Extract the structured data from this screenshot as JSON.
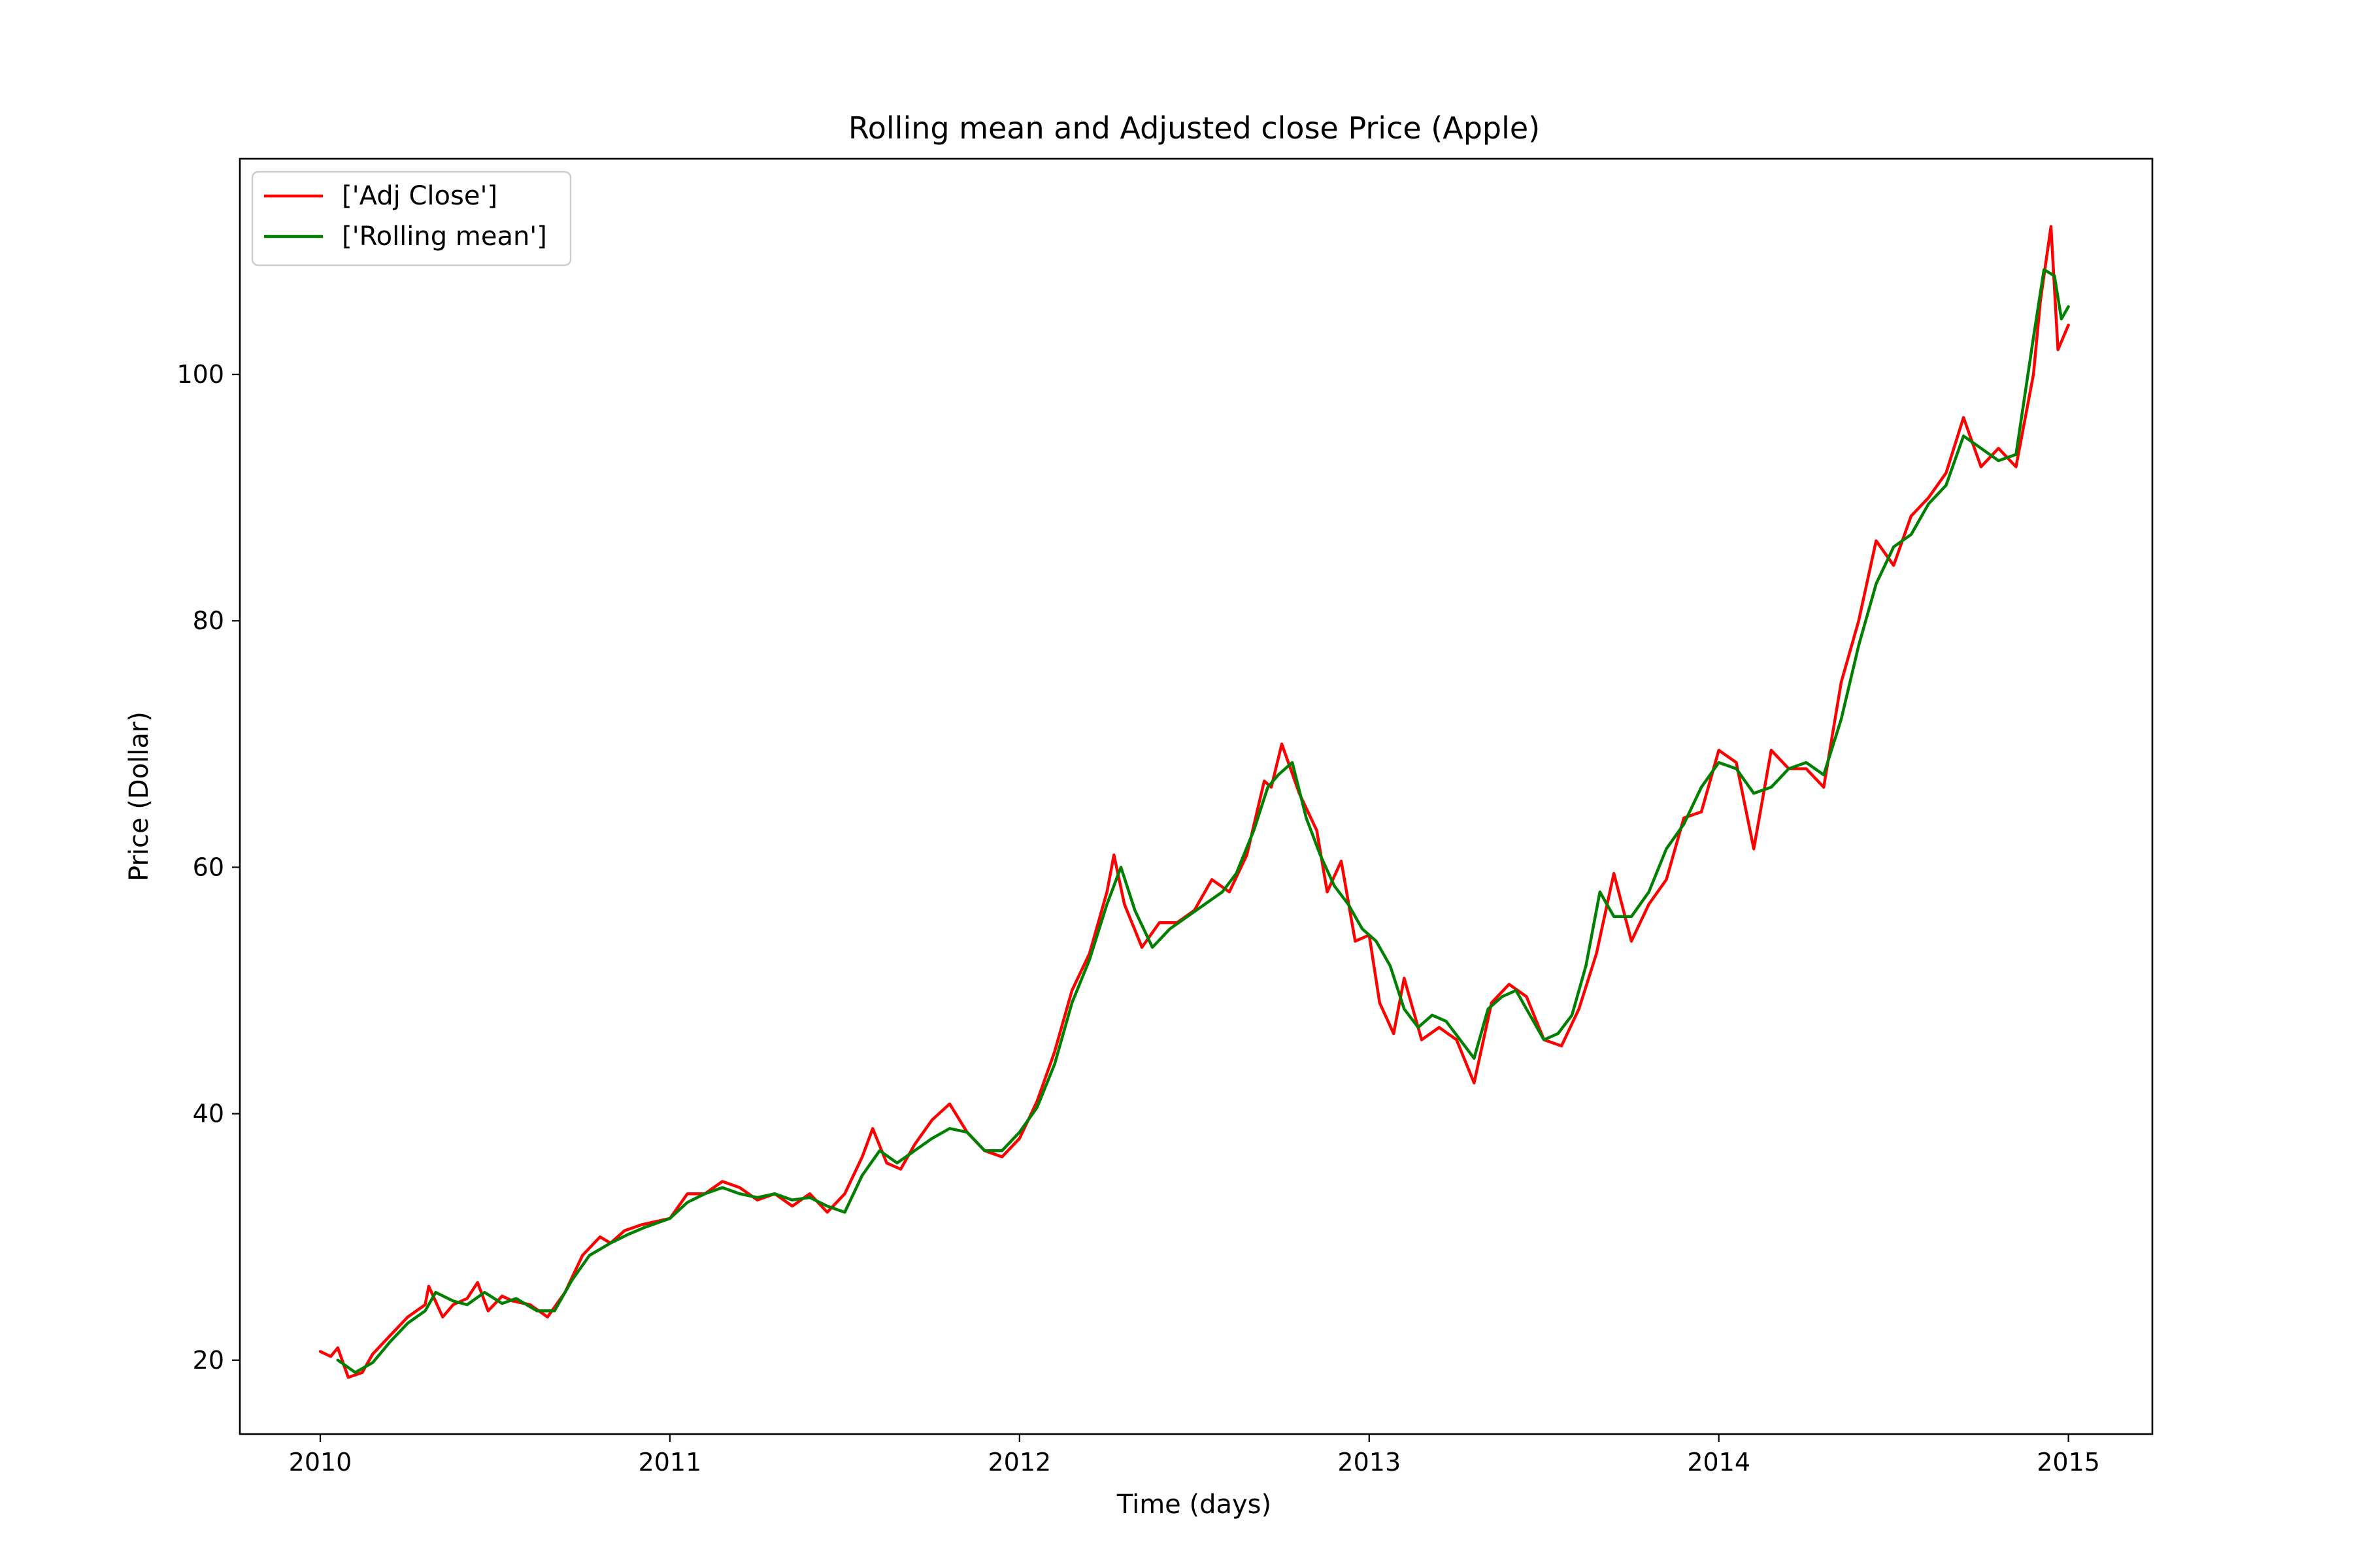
{
  "chart_data": {
    "type": "line",
    "title": "Rolling mean and Adjusted close Price (Apple)",
    "xlabel": "Time (days)",
    "ylabel": "Price (Dollar)",
    "xlim": [
      2009.77,
      2015.24
    ],
    "ylim": [
      14.0,
      117.5
    ],
    "x_ticks": [
      2010,
      2011,
      2012,
      2013,
      2014,
      2015
    ],
    "x_tick_labels": [
      "2010",
      "2011",
      "2012",
      "2013",
      "2014",
      "2015"
    ],
    "y_ticks": [
      20,
      40,
      60,
      80,
      100
    ],
    "y_tick_labels": [
      "20",
      "40",
      "60",
      "80",
      "100"
    ],
    "grid": false,
    "legend_position": "upper left",
    "series": [
      {
        "name": "['Adj Close']",
        "color": "#ff0000",
        "x": [
          2010.0,
          2010.03,
          2010.05,
          2010.08,
          2010.12,
          2010.15,
          2010.2,
          2010.25,
          2010.3,
          2010.31,
          2010.35,
          2010.38,
          2010.42,
          2010.45,
          2010.48,
          2010.52,
          2010.55,
          2010.6,
          2010.65,
          2010.7,
          2010.75,
          2010.8,
          2010.83,
          2010.87,
          2010.92,
          2011.0,
          2011.05,
          2011.1,
          2011.15,
          2011.2,
          2011.25,
          2011.3,
          2011.35,
          2011.4,
          2011.45,
          2011.5,
          2011.55,
          2011.58,
          2011.62,
          2011.66,
          2011.7,
          2011.75,
          2011.8,
          2011.85,
          2011.9,
          2011.95,
          2012.0,
          2012.05,
          2012.1,
          2012.15,
          2012.2,
          2012.25,
          2012.27,
          2012.3,
          2012.35,
          2012.4,
          2012.45,
          2012.5,
          2012.55,
          2012.6,
          2012.65,
          2012.7,
          2012.72,
          2012.75,
          2012.8,
          2012.85,
          2012.88,
          2012.92,
          2012.96,
          2013.0,
          2013.03,
          2013.07,
          2013.1,
          2013.15,
          2013.2,
          2013.25,
          2013.3,
          2013.35,
          2013.4,
          2013.45,
          2013.5,
          2013.55,
          2013.6,
          2013.65,
          2013.7,
          2013.75,
          2013.8,
          2013.85,
          2013.9,
          2013.95,
          2014.0,
          2014.05,
          2014.1,
          2014.15,
          2014.2,
          2014.25,
          2014.3,
          2014.35,
          2014.4,
          2014.45,
          2014.5,
          2014.55,
          2014.6,
          2014.65,
          2014.7,
          2014.75,
          2014.8,
          2014.85,
          2014.9,
          2014.92,
          2014.95,
          2014.97,
          2015.0
        ],
        "y": [
          20.7,
          20.3,
          21.0,
          18.6,
          19.0,
          20.5,
          22.0,
          23.5,
          24.5,
          26.0,
          23.5,
          24.5,
          25.0,
          26.3,
          24.0,
          25.2,
          24.8,
          24.5,
          23.5,
          25.5,
          28.5,
          30.0,
          29.5,
          30.5,
          31.0,
          31.5,
          33.5,
          33.5,
          34.5,
          34.0,
          33.0,
          33.5,
          32.5,
          33.5,
          32.0,
          33.5,
          36.5,
          38.8,
          36.0,
          35.5,
          37.5,
          39.5,
          40.8,
          38.5,
          37.0,
          36.5,
          38.0,
          41.0,
          45.0,
          50.0,
          53.0,
          58.0,
          61.0,
          57.0,
          53.5,
          55.5,
          55.5,
          56.5,
          59.0,
          58.0,
          61.0,
          67.0,
          66.5,
          70.0,
          66.0,
          63.0,
          58.0,
          60.5,
          54.0,
          54.5,
          49.0,
          46.5,
          51.0,
          46.0,
          47.0,
          46.0,
          42.5,
          49.0,
          50.5,
          49.5,
          46.0,
          45.5,
          48.5,
          53.0,
          59.5,
          54.0,
          57.0,
          59.0,
          64.0,
          64.5,
          69.5,
          68.5,
          61.5,
          69.5,
          68.0,
          68.0,
          66.5,
          75.0,
          80.0,
          86.5,
          84.5,
          88.5,
          90.0,
          92.0,
          96.5,
          92.5,
          94.0,
          92.5,
          100.0,
          106.0,
          112.0,
          102.0,
          104.0
        ]
      },
      {
        "name": "['Rolling mean']",
        "color": "#008000",
        "x": [
          2010.05,
          2010.1,
          2010.15,
          2010.2,
          2010.25,
          2010.3,
          2010.33,
          2010.38,
          2010.42,
          2010.47,
          2010.52,
          2010.56,
          2010.62,
          2010.67,
          2010.72,
          2010.77,
          2010.83,
          2010.88,
          2010.93,
          2011.0,
          2011.05,
          2011.1,
          2011.15,
          2011.2,
          2011.25,
          2011.3,
          2011.35,
          2011.4,
          2011.45,
          2011.5,
          2011.55,
          2011.6,
          2011.65,
          2011.7,
          2011.75,
          2011.8,
          2011.85,
          2011.9,
          2011.95,
          2012.0,
          2012.05,
          2012.1,
          2012.15,
          2012.2,
          2012.25,
          2012.29,
          2012.33,
          2012.38,
          2012.43,
          2012.48,
          2012.53,
          2012.58,
          2012.62,
          2012.67,
          2012.71,
          2012.74,
          2012.78,
          2012.82,
          2012.86,
          2012.9,
          2012.94,
          2012.98,
          2013.02,
          2013.06,
          2013.1,
          2013.14,
          2013.18,
          2013.22,
          2013.26,
          2013.3,
          2013.34,
          2013.38,
          2013.42,
          2013.46,
          2013.5,
          2013.54,
          2013.58,
          2013.62,
          2013.66,
          2013.7,
          2013.75,
          2013.8,
          2013.85,
          2013.9,
          2013.95,
          2014.0,
          2014.05,
          2014.1,
          2014.15,
          2014.2,
          2014.25,
          2014.3,
          2014.35,
          2014.4,
          2014.45,
          2014.5,
          2014.55,
          2014.6,
          2014.65,
          2014.7,
          2014.75,
          2014.8,
          2014.85,
          2014.9,
          2014.93,
          2014.96,
          2014.98,
          2015.0
        ],
        "y": [
          20.0,
          19.0,
          19.8,
          21.5,
          23.0,
          24.0,
          25.5,
          24.8,
          24.5,
          25.5,
          24.6,
          25.0,
          24.0,
          24.0,
          26.5,
          28.5,
          29.5,
          30.2,
          30.8,
          31.5,
          32.8,
          33.5,
          34.0,
          33.5,
          33.2,
          33.5,
          33.0,
          33.2,
          32.5,
          32.0,
          35.0,
          37.0,
          36.0,
          37.0,
          38.0,
          38.8,
          38.5,
          37.0,
          37.0,
          38.5,
          40.5,
          44.0,
          49.0,
          52.5,
          57.0,
          60.0,
          56.5,
          53.5,
          55.0,
          56.0,
          57.0,
          58.0,
          59.5,
          63.0,
          66.5,
          67.5,
          68.5,
          64.0,
          61.0,
          58.5,
          57.0,
          55.0,
          54.0,
          52.0,
          48.5,
          47.0,
          48.0,
          47.5,
          46.0,
          44.5,
          48.5,
          49.5,
          50.0,
          48.0,
          46.0,
          46.5,
          48.0,
          52.0,
          58.0,
          56.0,
          56.0,
          58.0,
          61.5,
          63.5,
          66.5,
          68.5,
          68.0,
          66.0,
          66.5,
          68.0,
          68.5,
          67.5,
          72.0,
          78.0,
          83.0,
          86.0,
          87.0,
          89.5,
          91.0,
          95.0,
          94.0,
          93.0,
          93.5,
          103.0,
          108.5,
          108.0,
          104.5,
          105.5
        ]
      }
    ]
  }
}
